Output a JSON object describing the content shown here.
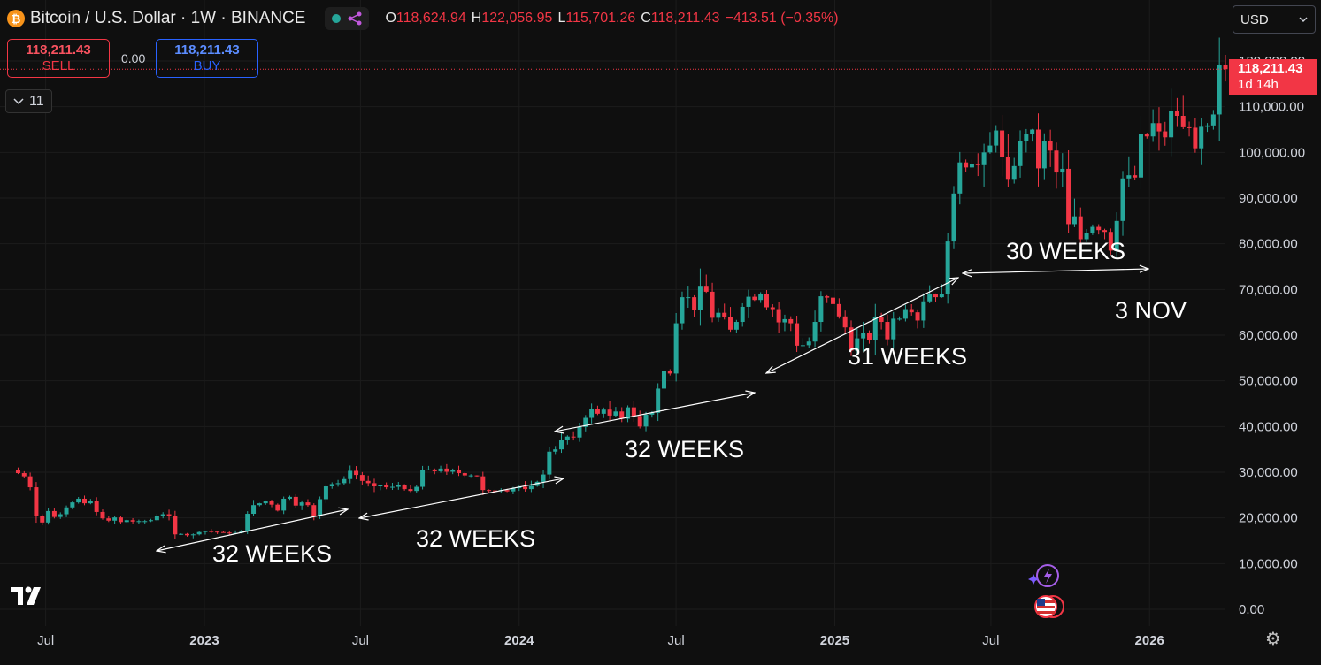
{
  "header": {
    "symbol_icon": "₿",
    "title": "Bitcoin / U.S. Dollar · 1W · BINANCE",
    "ohlc": [
      {
        "key": "O",
        "value": "118,624.94"
      },
      {
        "key": "H",
        "value": "122,056.95"
      },
      {
        "key": "L",
        "value": "115,701.26"
      },
      {
        "key": "C",
        "value": "118,211.43"
      }
    ],
    "change": "−413.51 (−0.35%)"
  },
  "trade": {
    "sell_price": "118,211.43",
    "sell_label": "SELL",
    "buy_price": "118,211.43",
    "buy_label": "BUY",
    "spread": "0.00"
  },
  "indicator_counter": "11",
  "currency": "USD",
  "last_price": {
    "price": "118,211.43",
    "countdown": "1d 14h"
  },
  "colors": {
    "up": "#26a69a",
    "down": "#f23645",
    "background": "#0f0f0f",
    "grid": "#1c1c1c"
  },
  "icons": [
    "bitcoin-icon",
    "multi-chart-icon",
    "chevron-down-icon",
    "tradingview-logo",
    "settings-gear-icon",
    "flash-icon",
    "us-flag-icon"
  ],
  "chart_data": {
    "type": "candlestick",
    "y_ticks": [
      "0.00",
      "10,000.00",
      "20,000.00",
      "30,000.00",
      "40,000.00",
      "50,000.00",
      "60,000.00",
      "70,000.00",
      "80,000.00",
      "90,000.00",
      "100,000.00",
      "110,000.00",
      "120,000.00"
    ],
    "ylim": [
      0,
      120000
    ],
    "x_ticks": [
      "Jul",
      "2023",
      "Jul",
      "2024",
      "Jul",
      "2025",
      "Jul",
      "2026"
    ],
    "xlim": [
      "2022-05-09",
      "2026-03-30"
    ],
    "last_price": 118211.43,
    "candles_weekly_approx": {
      "start": "2022-05-30",
      "interval": "1W",
      "close": [
        29800,
        29100,
        26700,
        20500,
        19000,
        21500,
        20200,
        20800,
        22300,
        23400,
        24200,
        23200,
        23800,
        21300,
        19900,
        19400,
        20100,
        19100,
        19500,
        19200,
        19300,
        19300,
        19500,
        20400,
        20800,
        20400,
        16400,
        16500,
        16200,
        16400,
        16900,
        17100,
        17000,
        16900,
        16800,
        16600,
        16700,
        17200,
        20900,
        22800,
        23200,
        23700,
        22900,
        21600,
        24200,
        24600,
        22700,
        23400,
        22800,
        20400,
        24100,
        26900,
        27400,
        27600,
        28500,
        30300,
        29400,
        28100,
        27600,
        26900,
        27100,
        26700,
        26800,
        27100,
        26300,
        25900,
        26800,
        30500,
        30600,
        30200,
        30800,
        30100,
        30500,
        29800,
        29300,
        29300,
        29100,
        26100,
        26000,
        25900,
        26100,
        25800,
        26500,
        26800,
        26300,
        27000,
        27900,
        29500,
        34500,
        35000,
        37100,
        37800,
        37600,
        39900,
        41900,
        43800,
        42800,
        43700,
        42400,
        43300,
        41700,
        44200,
        42300,
        40000,
        42600,
        43000,
        48300,
        52100,
        51600,
        62600,
        68300,
        68300,
        65500,
        70800,
        69500,
        63800,
        64900,
        64000,
        61200,
        62900,
        66200,
        68400,
        67700,
        69000,
        66100,
        65700,
        62800,
        63500,
        62600,
        57700,
        57800,
        58600,
        62900,
        68500,
        68200,
        66800,
        64100,
        61700,
        56600,
        59300,
        60400,
        58900,
        64000,
        62900,
        59100,
        63600,
        63600,
        65700,
        65000,
        63200,
        67400,
        69000,
        68300,
        69000,
        80500,
        91000,
        97800,
        96700,
        97400,
        97200,
        100000,
        101500,
        104800,
        99000,
        94200,
        97000,
        102500,
        104100,
        105000,
        96500,
        102400,
        100400,
        95600,
        96400,
        84300,
        86000,
        81000,
        82400,
        83700,
        83000,
        82600,
        78500,
        85000,
        94300,
        95000,
        94500,
        104000,
        103500,
        106400,
        104600,
        103300,
        109000,
        108000,
        105500,
        105400,
        100900,
        105600,
        105900,
        108300,
        119200,
        118211
      ]
    },
    "annotations": [
      {
        "text": "32 WEEKS"
      },
      {
        "text": "32 WEEKS"
      },
      {
        "text": "32 WEEKS"
      },
      {
        "text": "31 WEEKS"
      },
      {
        "text": "30 WEEKS"
      },
      {
        "text": "3 NOV"
      }
    ]
  }
}
